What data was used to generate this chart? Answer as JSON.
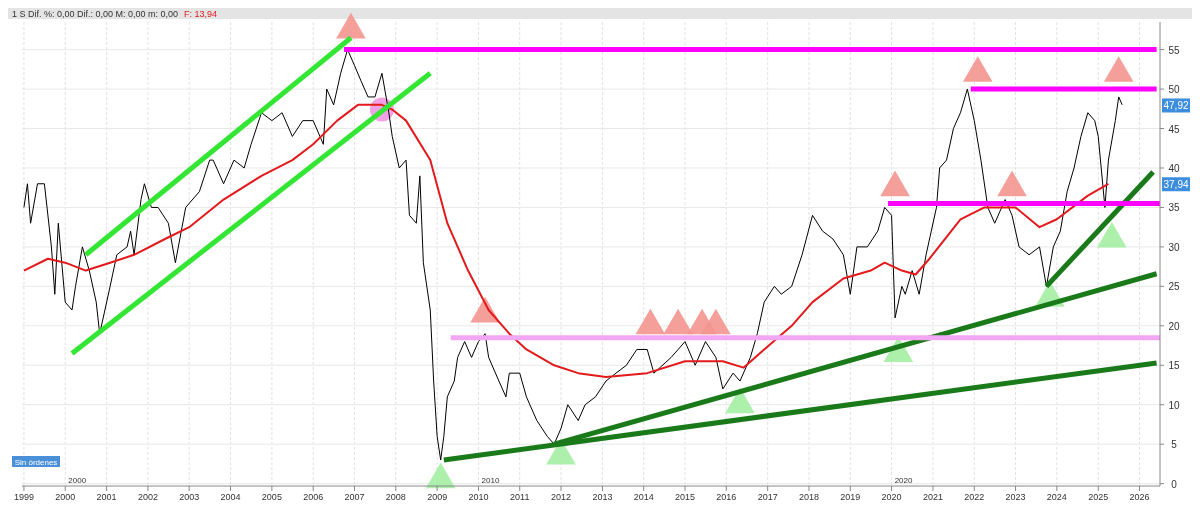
{
  "chart_data": {
    "type": "line",
    "title": "1 S  Dif. %: 0,00  Dif.: 0,00  M: 0,00  m: 0,00",
    "subtitle": "F: 13,94",
    "xlim": [
      "1998-12-15",
      "2026-07-01"
    ],
    "xticks": [
      "1999",
      "2000",
      "2001",
      "2002",
      "2003",
      "2004",
      "2005",
      "2006",
      "2007",
      "2008",
      "2009",
      "2010",
      "2011",
      "2012",
      "2013",
      "2014",
      "2015",
      "2016",
      "2017",
      "2018",
      "2019",
      "2020",
      "2021",
      "2022",
      "2023",
      "2024",
      "2025",
      "2026"
    ],
    "ylim": [
      -0.3,
      58.5
    ],
    "yticks": [
      0,
      5,
      10,
      15,
      20,
      25,
      30,
      35,
      40,
      45,
      50,
      55
    ],
    "grid": true,
    "annotations": [
      {
        "text": "47,92",
        "y": 47.92
      },
      {
        "text": "37,94",
        "y": 37.94
      },
      "2000",
      "2010",
      "2020",
      "Sin órdenes"
    ],
    "series": [
      {
        "color": "#000000",
        "x": [
          "1999-01",
          "1999-02",
          "1999-03",
          "1999-05",
          "1999-07",
          "1999-09",
          "1999-10",
          "1999-11",
          "2000-01",
          "2000-03",
          "2000-04",
          "2000-06",
          "2000-08",
          "2000-10",
          "2000-11",
          "2001-02",
          "2001-04",
          "2001-07",
          "2001-08",
          "2001-09",
          "2001-11",
          "2001-12",
          "2002-02",
          "2002-04",
          "2002-07",
          "2002-09",
          "2002-12",
          "2003-04",
          "2003-07",
          "2003-08",
          "2003-11",
          "2004-02",
          "2004-05",
          "2004-07",
          "2004-10",
          "2005-01",
          "2005-04",
          "2005-07",
          "2005-10",
          "2006-01",
          "2006-04",
          "2006-05",
          "2006-07",
          "2006-09",
          "2006-11",
          "2007-01",
          "2007-03",
          "2007-05",
          "2007-07",
          "2007-09",
          "2007-11",
          "2007-12",
          "2008-02",
          "2008-04",
          "2008-05",
          "2008-07",
          "2008-08",
          "2008-09",
          "2008-11",
          "2008-12",
          "2009-01",
          "2009-02",
          "2009-03",
          "2009-04",
          "2009-06",
          "2009-07",
          "2009-09",
          "2009-11",
          "2010-01",
          "2010-03",
          "2010-04",
          "2010-07",
          "2010-09",
          "2010-10",
          "2011-01",
          "2011-03",
          "2011-06",
          "2011-09",
          "2011-11",
          "2012-01",
          "2012-03",
          "2012-06",
          "2012-08",
          "2012-11",
          "2013-02",
          "2013-05",
          "2013-08",
          "2013-11",
          "2014-02",
          "2014-04",
          "2014-09",
          "2015-01",
          "2015-04",
          "2015-07",
          "2015-10",
          "2015-12",
          "2016-03",
          "2016-05",
          "2016-08",
          "2016-10",
          "2016-12",
          "2017-03",
          "2017-05",
          "2017-08",
          "2017-11",
          "2018-02",
          "2018-05",
          "2018-08",
          "2018-11",
          "2019-01",
          "2019-03",
          "2019-06",
          "2019-09",
          "2019-11",
          "2020-01",
          "2020-02",
          "2020-04",
          "2020-05",
          "2020-07",
          "2020-09",
          "2020-11",
          "2021-02",
          "2021-03",
          "2021-05",
          "2021-07",
          "2021-09",
          "2021-11",
          "2022-01",
          "2022-03",
          "2022-05",
          "2022-07",
          "2022-10",
          "2022-12",
          "2023-02",
          "2023-05",
          "2023-08",
          "2023-10",
          "2023-12",
          "2024-02",
          "2024-04",
          "2024-06",
          "2024-08",
          "2024-10",
          "2024-12",
          "2025-01",
          "2025-03",
          "2025-04",
          "2025-06",
          "2025-07",
          "2025-08"
        ],
        "values": [
          35,
          38,
          33,
          38,
          38,
          30,
          24,
          33,
          23,
          22,
          25,
          30,
          27,
          23,
          19,
          25,
          29,
          30,
          32,
          29,
          36,
          38,
          35,
          35,
          33,
          28,
          35,
          37,
          41,
          41,
          38,
          41,
          40,
          43,
          47,
          46,
          47,
          44,
          46,
          46,
          43,
          50,
          48,
          52,
          55,
          53,
          51,
          49,
          49,
          52,
          47,
          44,
          40,
          41,
          34,
          33,
          39,
          28,
          22,
          13,
          6,
          3,
          6,
          11,
          13,
          16,
          18,
          16,
          18,
          19,
          16,
          13,
          11,
          14,
          14,
          11,
          8,
          6,
          5,
          7,
          10,
          8,
          10,
          11,
          13,
          14,
          15,
          17,
          17,
          14,
          16,
          18,
          15,
          18,
          16,
          12,
          14,
          13,
          16,
          19,
          23,
          25,
          24,
          25,
          29,
          34,
          32,
          31,
          29,
          24,
          30,
          30,
          32,
          35,
          34,
          21,
          25,
          24,
          27,
          24,
          29,
          35,
          40,
          41,
          45,
          47,
          50,
          46,
          41,
          35,
          33,
          36,
          34,
          30,
          29,
          30,
          25,
          30,
          32,
          37,
          40,
          44,
          47,
          46,
          44,
          35,
          41,
          46,
          49,
          48
        ]
      },
      {
        "color": "#e31a1c",
        "x": [
          "1999-01",
          "1999-08",
          "2000-01",
          "2000-07",
          "2001-02",
          "2001-09",
          "2002-06",
          "2003-01",
          "2003-11",
          "2004-10",
          "2005-07",
          "2006-01",
          "2006-08",
          "2007-02",
          "2007-09",
          "2007-12",
          "2008-04",
          "2008-11",
          "2009-04",
          "2009-10",
          "2010-04",
          "2010-10",
          "2011-03",
          "2011-11",
          "2012-06",
          "2013-02",
          "2014-02",
          "2015-01",
          "2015-12",
          "2016-06",
          "2016-12",
          "2017-08",
          "2018-02",
          "2018-11",
          "2019-07",
          "2019-11",
          "2020-04",
          "2020-08",
          "2020-12",
          "2021-09",
          "2022-04",
          "2022-08",
          "2023-01",
          "2023-08",
          "2024-01",
          "2024-10",
          "2025-04"
        ],
        "values": [
          27,
          28.5,
          28,
          27,
          28,
          29,
          31,
          32.5,
          36,
          39,
          41,
          43,
          46,
          48,
          48,
          47.4,
          46,
          41,
          33,
          27,
          22,
          19,
          17,
          15,
          14,
          13.5,
          14,
          15.5,
          15.5,
          14.7,
          17,
          20,
          23,
          26,
          27,
          28,
          27,
          26.5,
          28.5,
          33.5,
          35,
          35,
          35,
          32.5,
          33.5,
          36.5,
          38
        ]
      },
      {
        "color": "#33e633",
        "x": [
          "2000-07",
          "2006-12"
        ],
        "values": [
          29,
          56.5
        ]
      },
      {
        "color": "#33e633",
        "x": [
          "2000-03",
          "2008-11"
        ],
        "values": [
          16.5,
          52
        ]
      },
      {
        "color": "#1a7a1a",
        "x": [
          "2009-03",
          "2026-06"
        ],
        "values": [
          3,
          15.3
        ]
      },
      {
        "color": "#1a7a1a",
        "x": [
          "2011-11",
          "2026-06"
        ],
        "values": [
          5,
          26.6
        ]
      },
      {
        "color": "#1a7a1a",
        "x": [
          "2023-10",
          "2026-05"
        ],
        "values": [
          25,
          39.5
        ]
      },
      {
        "color": "#ff00ff",
        "x": [
          "2006-10",
          "2026-06"
        ],
        "values": [
          55,
          55
        ]
      },
      {
        "color": "#ff00ff",
        "x": [
          "2021-12",
          "2026-06"
        ],
        "values": [
          50,
          50
        ]
      },
      {
        "color": "#ff00ff",
        "x": [
          "2019-12",
          "2026-07"
        ],
        "values": [
          35.5,
          35.5
        ]
      },
      {
        "color": "#f3a6f3",
        "x": [
          "2009-05",
          "2026-07"
        ],
        "values": [
          18.5,
          18.5
        ]
      },
      {
        "type": "scatter",
        "marker": "triangle",
        "color": "#f4958f",
        "x": [
          "2006-12",
          "2010-03",
          "2014-03",
          "2014-11",
          "2015-06",
          "2015-10",
          "2020-02",
          "2022-02",
          "2022-12",
          "2025-07"
        ],
        "values": [
          57.5,
          21.5,
          20,
          20,
          20,
          20,
          37.5,
          52,
          37.5,
          52
        ]
      },
      {
        "type": "scatter",
        "marker": "triangle",
        "color": "#a3eea3",
        "x": [
          "2009-02",
          "2012-01",
          "2016-05",
          "2020-03",
          "2023-11",
          "2025-05"
        ],
        "values": [
          0.5,
          3.5,
          10,
          16.5,
          23.5,
          31
        ]
      },
      {
        "type": "scatter",
        "marker": "circle",
        "color": "#f08ae0",
        "x": [
          "2007-09"
        ],
        "values": [
          47.4
        ]
      }
    ]
  }
}
